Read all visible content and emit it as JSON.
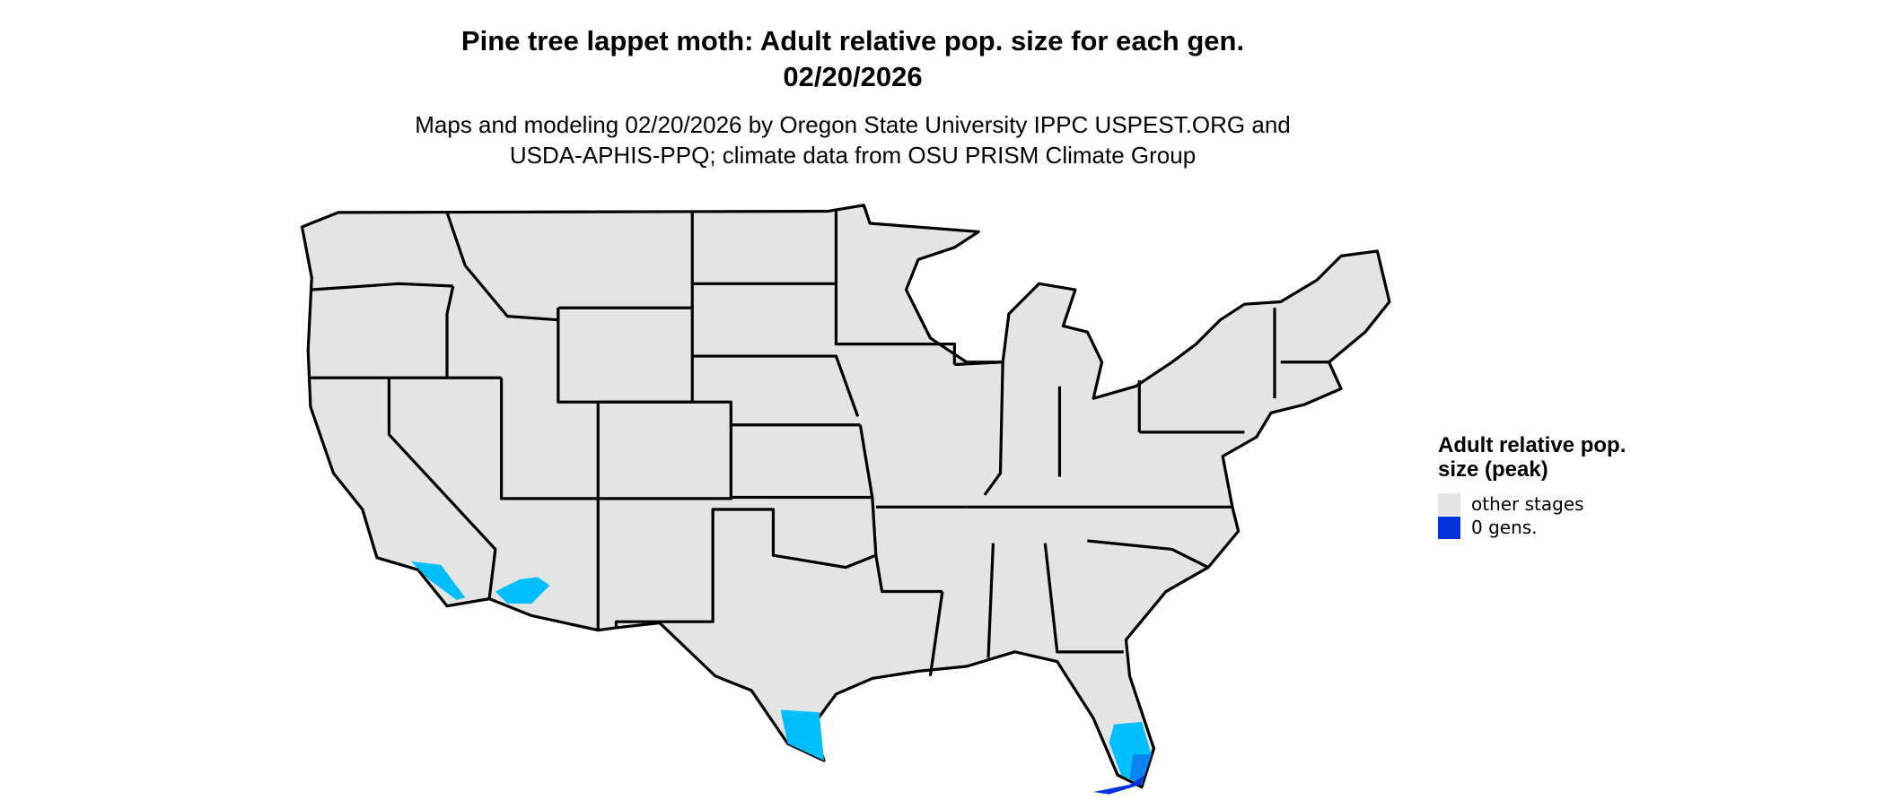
{
  "title": {
    "line1": "Pine tree lappet moth: Adult relative pop. size for each gen.",
    "line2": "02/20/2026"
  },
  "subtitle": {
    "line1": "Maps and modeling 02/20/2026 by Oregon State University IPPC USPEST.ORG and",
    "line2": "USDA-APHIS-PPQ; climate data from OSU PRISM Climate Group"
  },
  "legend": {
    "title": "Adult relative pop. size (peak)",
    "items": [
      {
        "label": "other stages",
        "color": "#e4e4e4"
      },
      {
        "label": "0 gens.",
        "color": "#0033dd"
      }
    ]
  },
  "map": {
    "region": "Contiguous United States",
    "base_color": "#e4e4e4",
    "border_color": "#000000",
    "shaded_colors": [
      "#00bfff",
      "#0a84f0",
      "#0033dd"
    ]
  }
}
